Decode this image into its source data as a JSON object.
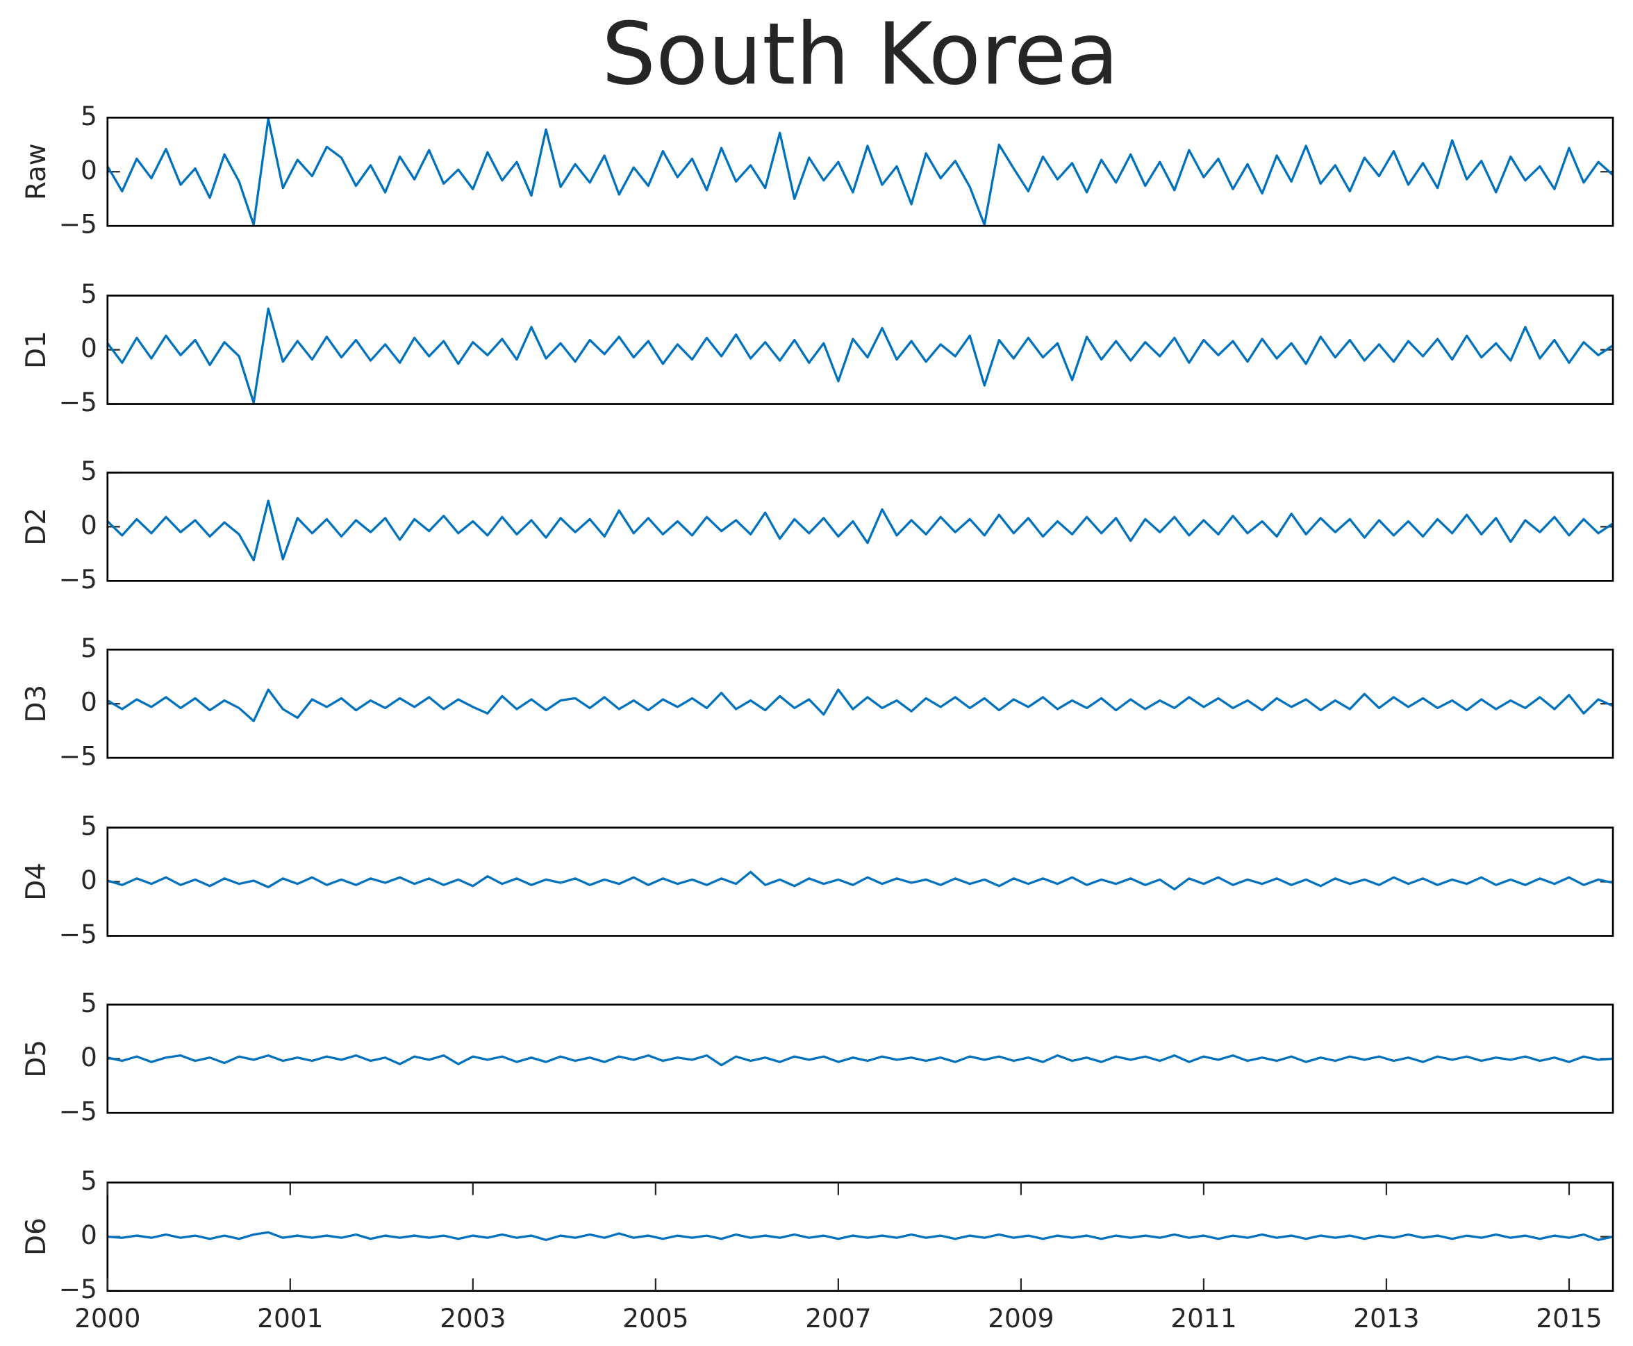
{
  "chart_data": {
    "type": "line",
    "title": "South Korea",
    "color": "#0072BD",
    "xlim": [
      0,
      4120
    ],
    "xticks": [
      {
        "value": 0,
        "label": "2000"
      },
      {
        "value": 500,
        "label": "2001"
      },
      {
        "value": 1000,
        "label": "2003"
      },
      {
        "value": 1500,
        "label": "2005"
      },
      {
        "value": 2000,
        "label": "2007"
      },
      {
        "value": 2500,
        "label": "2009"
      },
      {
        "value": 3000,
        "label": "2011"
      },
      {
        "value": 3500,
        "label": "2013"
      },
      {
        "value": 4000,
        "label": "2015"
      }
    ],
    "x": [
      0,
      40,
      80,
      120,
      160,
      200,
      240,
      280,
      320,
      360,
      400,
      440,
      480,
      520,
      560,
      600,
      640,
      680,
      720,
      760,
      800,
      840,
      880,
      920,
      960,
      1000,
      1040,
      1080,
      1120,
      1160,
      1200,
      1240,
      1280,
      1320,
      1360,
      1400,
      1440,
      1480,
      1520,
      1560,
      1600,
      1640,
      1680,
      1720,
      1760,
      1800,
      1840,
      1880,
      1920,
      1960,
      2000,
      2040,
      2080,
      2120,
      2160,
      2200,
      2240,
      2280,
      2320,
      2360,
      2400,
      2440,
      2480,
      2520,
      2560,
      2600,
      2640,
      2680,
      2720,
      2760,
      2800,
      2840,
      2880,
      2920,
      2960,
      3000,
      3040,
      3080,
      3120,
      3160,
      3200,
      3240,
      3280,
      3320,
      3360,
      3400,
      3440,
      3480,
      3520,
      3560,
      3600,
      3640,
      3680,
      3720,
      3760,
      3800,
      3840,
      3880,
      3920,
      3960,
      4000,
      4040,
      4080,
      4120
    ],
    "panels": [
      {
        "ylabel": "Raw",
        "ylim": [
          -5,
          5
        ],
        "yticks": [
          {
            "value": -5,
            "label": "−5"
          },
          0,
          5
        ],
        "values": [
          0.5,
          -1.8,
          1.2,
          -0.6,
          2.1,
          -1.2,
          0.3,
          -2.4,
          1.6,
          -0.9,
          -4.9,
          4.9,
          -1.5,
          1.1,
          -0.4,
          2.3,
          1.3,
          -1.3,
          0.6,
          -1.9,
          1.4,
          -0.7,
          2.0,
          -1.1,
          0.2,
          -1.6,
          1.8,
          -0.8,
          0.9,
          -2.2,
          3.9,
          -1.4,
          0.7,
          -1.0,
          1.5,
          -2.1,
          0.4,
          -1.3,
          1.9,
          -0.5,
          1.2,
          -1.7,
          2.2,
          -0.9,
          0.6,
          -1.5,
          3.6,
          -2.5,
          1.3,
          -0.8,
          0.9,
          -1.9,
          2.4,
          -1.2,
          0.5,
          -3.0,
          1.7,
          -0.6,
          1.0,
          -1.4,
          -4.9,
          2.5,
          0.3,
          -1.8,
          1.4,
          -0.7,
          0.8,
          -1.9,
          1.1,
          -1.0,
          1.6,
          -1.3,
          0.9,
          -1.7,
          2.0,
          -0.5,
          1.2,
          -1.6,
          0.7,
          -2.0,
          1.5,
          -0.9,
          2.4,
          -1.1,
          0.6,
          -1.8,
          1.3,
          -0.4,
          1.9,
          -1.2,
          0.8,
          -1.5,
          2.9,
          -0.7,
          1.0,
          -1.9,
          1.4,
          -0.8,
          0.5,
          -1.6,
          2.2,
          -1.0,
          0.9,
          -0.3
        ]
      },
      {
        "ylabel": "D1",
        "ylim": [
          -5,
          5
        ],
        "yticks": [
          {
            "value": -5,
            "label": "−5"
          },
          0,
          5
        ],
        "values": [
          0.6,
          -1.2,
          1.1,
          -0.8,
          1.3,
          -0.5,
          0.9,
          -1.4,
          0.7,
          -0.6,
          -4.9,
          3.8,
          -1.1,
          0.8,
          -0.9,
          1.2,
          -0.7,
          0.9,
          -1.0,
          0.5,
          -1.2,
          1.1,
          -0.6,
          0.8,
          -1.3,
          0.7,
          -0.5,
          1.0,
          -0.9,
          2.1,
          -0.8,
          0.6,
          -1.1,
          0.9,
          -0.4,
          1.2,
          -0.7,
          0.8,
          -1.3,
          0.5,
          -0.9,
          1.1,
          -0.6,
          1.4,
          -0.8,
          0.7,
          -1.0,
          0.9,
          -1.2,
          0.6,
          -2.9,
          1.0,
          -0.7,
          2.0,
          -0.9,
          0.8,
          -1.1,
          0.5,
          -0.6,
          1.3,
          -3.3,
          0.9,
          -0.8,
          1.1,
          -0.7,
          0.6,
          -2.8,
          1.2,
          -0.9,
          0.8,
          -1.0,
          0.7,
          -0.6,
          1.1,
          -1.2,
          0.9,
          -0.5,
          0.8,
          -1.1,
          1.0,
          -0.8,
          0.6,
          -1.3,
          1.2,
          -0.7,
          0.9,
          -1.0,
          0.5,
          -1.1,
          0.8,
          -0.6,
          1.0,
          -0.9,
          1.3,
          -0.7,
          0.6,
          -1.0,
          2.1,
          -0.8,
          0.9,
          -1.2,
          0.7,
          -0.5,
          0.4
        ]
      },
      {
        "ylabel": "D2",
        "ylim": [
          -5,
          5
        ],
        "yticks": [
          {
            "value": -5,
            "label": "−5"
          },
          0,
          5
        ],
        "values": [
          0.5,
          -0.8,
          0.7,
          -0.6,
          0.9,
          -0.5,
          0.6,
          -0.9,
          0.4,
          -0.7,
          -3.1,
          2.4,
          -3.0,
          0.8,
          -0.6,
          0.7,
          -0.9,
          0.6,
          -0.5,
          0.8,
          -1.2,
          0.7,
          -0.4,
          1.0,
          -0.6,
          0.5,
          -0.8,
          0.9,
          -0.7,
          0.6,
          -1.0,
          0.8,
          -0.5,
          0.7,
          -0.9,
          1.5,
          -0.6,
          0.8,
          -0.7,
          0.5,
          -0.8,
          0.9,
          -0.4,
          0.6,
          -0.7,
          1.3,
          -1.1,
          0.7,
          -0.6,
          0.8,
          -0.9,
          0.5,
          -1.5,
          1.6,
          -0.8,
          0.6,
          -0.7,
          0.9,
          -0.5,
          0.7,
          -0.8,
          1.1,
          -0.6,
          0.8,
          -0.9,
          0.5,
          -0.7,
          0.9,
          -0.6,
          0.8,
          -1.3,
          0.7,
          -0.5,
          0.9,
          -0.8,
          0.6,
          -0.7,
          1.0,
          -0.6,
          0.5,
          -0.9,
          1.2,
          -0.7,
          0.8,
          -0.5,
          0.7,
          -1.0,
          0.6,
          -0.8,
          0.5,
          -0.9,
          0.7,
          -0.6,
          1.1,
          -0.7,
          0.8,
          -1.4,
          0.6,
          -0.5,
          0.9,
          -0.8,
          0.7,
          -0.6,
          0.3
        ]
      },
      {
        "ylabel": "D3",
        "ylim": [
          -5,
          5
        ],
        "yticks": [
          {
            "value": -5,
            "label": "−5"
          },
          0,
          5
        ],
        "values": [
          0.3,
          -0.5,
          0.4,
          -0.3,
          0.6,
          -0.4,
          0.5,
          -0.6,
          0.3,
          -0.4,
          -1.6,
          1.3,
          -0.5,
          -1.3,
          0.4,
          -0.3,
          0.5,
          -0.6,
          0.3,
          -0.4,
          0.5,
          -0.3,
          0.6,
          -0.5,
          0.4,
          -0.3,
          -0.9,
          0.7,
          -0.5,
          0.4,
          -0.6,
          0.3,
          0.5,
          -0.4,
          0.6,
          -0.5,
          0.3,
          -0.6,
          0.4,
          -0.3,
          0.5,
          -0.4,
          1.0,
          -0.5,
          0.3,
          -0.6,
          0.7,
          -0.4,
          0.4,
          -1.0,
          1.3,
          -0.5,
          0.6,
          -0.4,
          0.3,
          -0.7,
          0.5,
          -0.3,
          0.6,
          -0.4,
          0.5,
          -0.6,
          0.4,
          -0.3,
          0.6,
          -0.5,
          0.3,
          -0.4,
          0.5,
          -0.6,
          0.4,
          -0.5,
          0.3,
          -0.4,
          0.6,
          -0.3,
          0.5,
          -0.4,
          0.3,
          -0.6,
          0.5,
          -0.3,
          0.4,
          -0.6,
          0.3,
          -0.5,
          0.9,
          -0.4,
          0.6,
          -0.3,
          0.5,
          -0.4,
          0.3,
          -0.6,
          0.4,
          -0.5,
          0.3,
          -0.4,
          0.6,
          -0.5,
          0.8,
          -0.9,
          0.4,
          -0.2
        ]
      },
      {
        "ylabel": "D4",
        "ylim": [
          -5,
          5
        ],
        "yticks": [
          {
            "value": -5,
            "label": "−5"
          },
          0,
          5
        ],
        "values": [
          0.1,
          -0.3,
          0.3,
          -0.2,
          0.4,
          -0.3,
          0.2,
          -0.4,
          0.3,
          -0.2,
          0.1,
          -0.5,
          0.3,
          -0.2,
          0.4,
          -0.3,
          0.2,
          -0.3,
          0.3,
          -0.1,
          0.4,
          -0.2,
          0.3,
          -0.3,
          0.2,
          -0.4,
          0.5,
          -0.2,
          0.3,
          -0.3,
          0.2,
          -0.1,
          0.3,
          -0.3,
          0.2,
          -0.2,
          0.4,
          -0.3,
          0.3,
          -0.2,
          0.2,
          -0.3,
          0.3,
          -0.2,
          0.9,
          -0.3,
          0.2,
          -0.4,
          0.3,
          -0.2,
          0.2,
          -0.3,
          0.4,
          -0.2,
          0.3,
          -0.1,
          0.2,
          -0.3,
          0.3,
          -0.2,
          0.2,
          -0.4,
          0.3,
          -0.2,
          0.3,
          -0.2,
          0.4,
          -0.3,
          0.2,
          -0.2,
          0.3,
          -0.3,
          0.2,
          -0.7,
          0.3,
          -0.2,
          0.4,
          -0.3,
          0.2,
          -0.2,
          0.3,
          -0.3,
          0.2,
          -0.4,
          0.3,
          -0.2,
          0.2,
          -0.3,
          0.4,
          -0.2,
          0.3,
          -0.3,
          0.2,
          -0.2,
          0.4,
          -0.3,
          0.2,
          -0.3,
          0.3,
          -0.2,
          0.4,
          -0.3,
          0.2,
          -0.1
        ]
      },
      {
        "ylabel": "D5",
        "ylim": [
          -5,
          5
        ],
        "yticks": [
          {
            "value": -5,
            "label": "−5"
          },
          0,
          5
        ],
        "values": [
          0.1,
          -0.2,
          0.2,
          -0.3,
          0.1,
          0.3,
          -0.2,
          0.1,
          -0.4,
          0.2,
          -0.1,
          0.3,
          -0.2,
          0.1,
          -0.2,
          0.2,
          -0.1,
          0.3,
          -0.2,
          0.1,
          -0.5,
          0.2,
          -0.1,
          0.3,
          -0.5,
          0.2,
          -0.1,
          0.2,
          -0.3,
          0.1,
          -0.3,
          0.2,
          -0.2,
          0.1,
          -0.3,
          0.2,
          -0.1,
          0.3,
          -0.2,
          0.1,
          -0.1,
          0.3,
          -0.6,
          0.2,
          -0.2,
          0.1,
          -0.3,
          0.2,
          -0.1,
          0.2,
          -0.3,
          0.1,
          -0.2,
          0.2,
          -0.1,
          0.1,
          -0.2,
          0.1,
          -0.3,
          0.2,
          -0.1,
          0.2,
          -0.2,
          0.1,
          -0.3,
          0.3,
          -0.2,
          0.1,
          -0.3,
          0.2,
          -0.1,
          0.2,
          -0.2,
          0.3,
          -0.3,
          0.2,
          -0.1,
          0.3,
          -0.2,
          0.1,
          -0.2,
          0.2,
          -0.3,
          0.1,
          -0.2,
          0.2,
          -0.1,
          0.2,
          -0.2,
          0.1,
          -0.3,
          0.2,
          -0.1,
          0.2,
          -0.2,
          0.1,
          -0.1,
          0.2,
          -0.2,
          0.1,
          -0.3,
          0.2,
          -0.1,
          0.0
        ]
      },
      {
        "ylabel": "D6",
        "ylim": [
          -5,
          5
        ],
        "yticks": [
          {
            "value": -5,
            "label": "−5"
          },
          0,
          5
        ],
        "values": [
          0.0,
          -0.1,
          0.1,
          -0.1,
          0.2,
          -0.1,
          0.1,
          -0.2,
          0.1,
          -0.2,
          0.2,
          0.4,
          -0.1,
          0.1,
          -0.1,
          0.1,
          -0.1,
          0.2,
          -0.2,
          0.1,
          -0.1,
          0.1,
          -0.1,
          0.1,
          -0.2,
          0.1,
          -0.1,
          0.2,
          -0.1,
          0.1,
          -0.3,
          0.1,
          -0.1,
          0.2,
          -0.1,
          0.3,
          -0.1,
          0.1,
          -0.2,
          0.1,
          -0.1,
          0.1,
          -0.2,
          0.2,
          -0.1,
          0.1,
          -0.1,
          0.2,
          -0.1,
          0.1,
          -0.2,
          0.1,
          -0.1,
          0.1,
          -0.1,
          0.2,
          -0.1,
          0.1,
          -0.2,
          0.1,
          -0.1,
          0.2,
          -0.1,
          0.1,
          -0.2,
          0.1,
          -0.1,
          0.1,
          -0.2,
          0.1,
          -0.1,
          0.1,
          -0.1,
          0.2,
          -0.1,
          0.1,
          -0.2,
          0.1,
          -0.1,
          0.2,
          -0.1,
          0.1,
          -0.2,
          0.1,
          -0.1,
          0.1,
          -0.2,
          0.1,
          -0.1,
          0.2,
          -0.1,
          0.1,
          -0.2,
          0.1,
          -0.1,
          0.2,
          -0.1,
          0.1,
          -0.2,
          0.1,
          -0.1,
          0.2,
          -0.3,
          0.0
        ]
      }
    ]
  }
}
